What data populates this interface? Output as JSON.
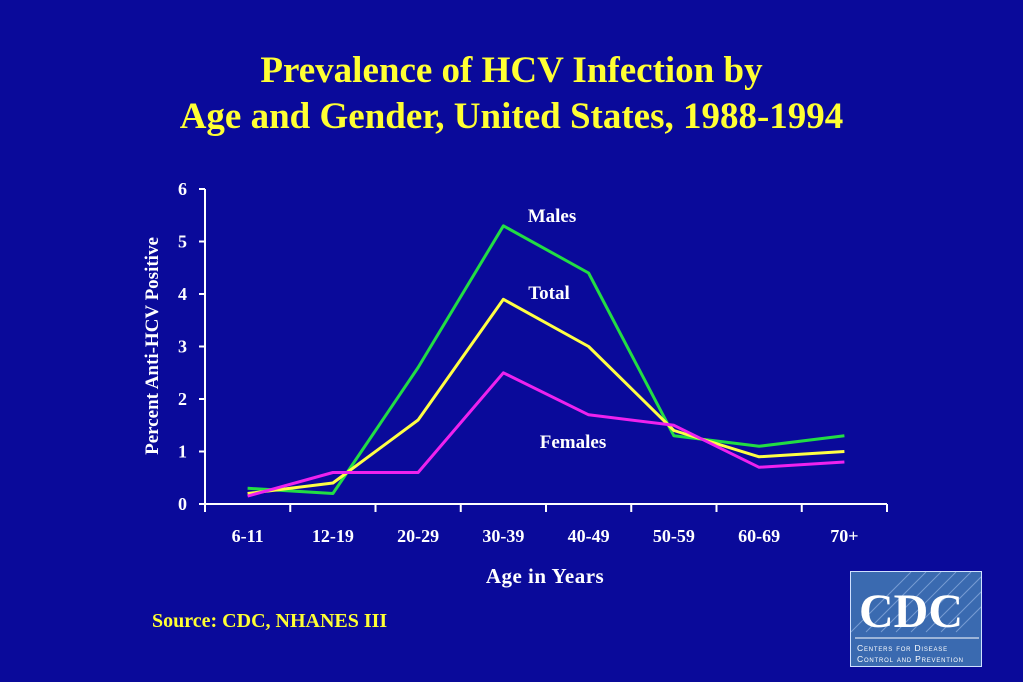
{
  "title": {
    "line1": "Prevalence of HCV Infection by",
    "line2": "Age and Gender, United States, 1988-1994"
  },
  "source": "Source: CDC, NHANES III",
  "logo": {
    "text": "CDC",
    "line1": "Centers for Disease",
    "line2": "Control and Prevention"
  },
  "colors": {
    "background": "#0a0a9a",
    "title": "#ffff33",
    "axis": "#ffffff"
  },
  "chart_data": {
    "type": "line",
    "xlabel": "Age in Years",
    "ylabel": "Percent Anti-HCV Positive",
    "ylim": [
      0,
      6
    ],
    "yticks": [
      0,
      1,
      2,
      3,
      4,
      5,
      6
    ],
    "categories": [
      "6-11",
      "12-19",
      "20-29",
      "30-39",
      "40-49",
      "50-59",
      "60-69",
      "70+"
    ],
    "grid": false,
    "series": [
      {
        "name": "Males",
        "color": "#22dd44",
        "values": [
          0.3,
          0.2,
          2.6,
          5.3,
          4.4,
          1.3,
          1.1,
          1.3
        ]
      },
      {
        "name": "Total",
        "color": "#ffff44",
        "values": [
          0.2,
          0.4,
          1.6,
          3.9,
          3.0,
          1.4,
          0.9,
          1.0
        ]
      },
      {
        "name": "Females",
        "color": "#ee22ee",
        "values": [
          0.15,
          0.6,
          0.6,
          2.5,
          1.7,
          1.5,
          0.7,
          0.8
        ]
      }
    ]
  }
}
